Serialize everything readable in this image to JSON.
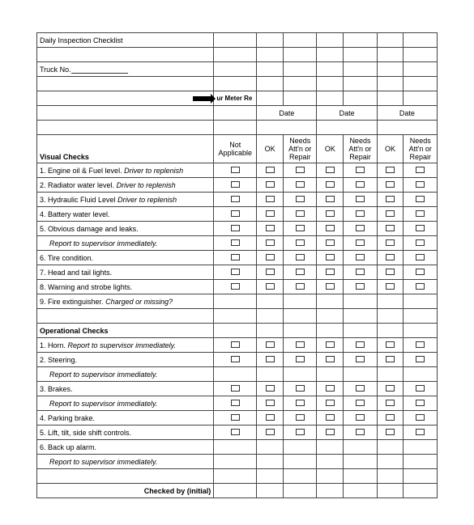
{
  "title": "Daily Inspection Checklist",
  "truck_label": "Truck No.",
  "meter_label": "ur Meter Re",
  "date_label": "Date",
  "col_na": "Not Applicable",
  "col_ok": "OK",
  "col_needs": "Needs Att'n or Repair",
  "section_visual": "Visual Checks",
  "section_operational": "Operational Checks",
  "checked_by": "Checked by (initial)",
  "visual_rows": [
    {
      "n": "1.",
      "label": "Engine oil & Fuel level.",
      "note": "Driver to replenish",
      "cb": true
    },
    {
      "n": "2.",
      "label": "Radiator water level.",
      "note": "Driver to replenish",
      "cb": true
    },
    {
      "n": "3.",
      "label": "Hydraulic Fluid Level",
      "note": "Driver to replenish",
      "cb": true
    },
    {
      "n": "4.",
      "label": "Battery water level.",
      "note": "",
      "cb": true
    },
    {
      "n": "5.",
      "label": "Obvious damage and leaks.",
      "note": "",
      "cb": true
    },
    {
      "n": "",
      "label": "",
      "note": "Report to supervisor immediately.",
      "cb": true,
      "indent": true
    },
    {
      "n": "6.",
      "label": "Tire condition.",
      "note": "",
      "cb": true
    },
    {
      "n": "7.",
      "label": "Head and tail lights.",
      "note": "",
      "cb": true
    },
    {
      "n": "8.",
      "label": "Warning and strobe lights.",
      "note": "",
      "cb": true
    },
    {
      "n": "9.",
      "label": "Fire extinguisher.",
      "note": "Charged or missing?",
      "cb": false
    }
  ],
  "op_rows": [
    {
      "n": "1.",
      "label": "Horn.",
      "note": "Report to supervisor immediately.",
      "cb": true
    },
    {
      "n": "2.",
      "label": "Steering.",
      "note": "",
      "cb": true
    },
    {
      "n": "",
      "label": "",
      "note": "Report to supervisor immediately.",
      "cb": false,
      "indent": true
    },
    {
      "n": "3.",
      "label": "Brakes.",
      "note": "",
      "cb": true
    },
    {
      "n": "",
      "label": "",
      "note": "Report to supervisor immediately.",
      "cb": true,
      "indent": true
    },
    {
      "n": "4.",
      "label": "Parking brake.",
      "note": "",
      "cb": true
    },
    {
      "n": "5.",
      "label": "Lift, tilt, side shift controls.",
      "note": "",
      "cb": true
    },
    {
      "n": "6.",
      "label": "Back up alarm.",
      "note": "",
      "cb": false
    },
    {
      "n": "",
      "label": "",
      "note": "Report to supervisor immediately.",
      "cb": false,
      "indent": true
    }
  ]
}
